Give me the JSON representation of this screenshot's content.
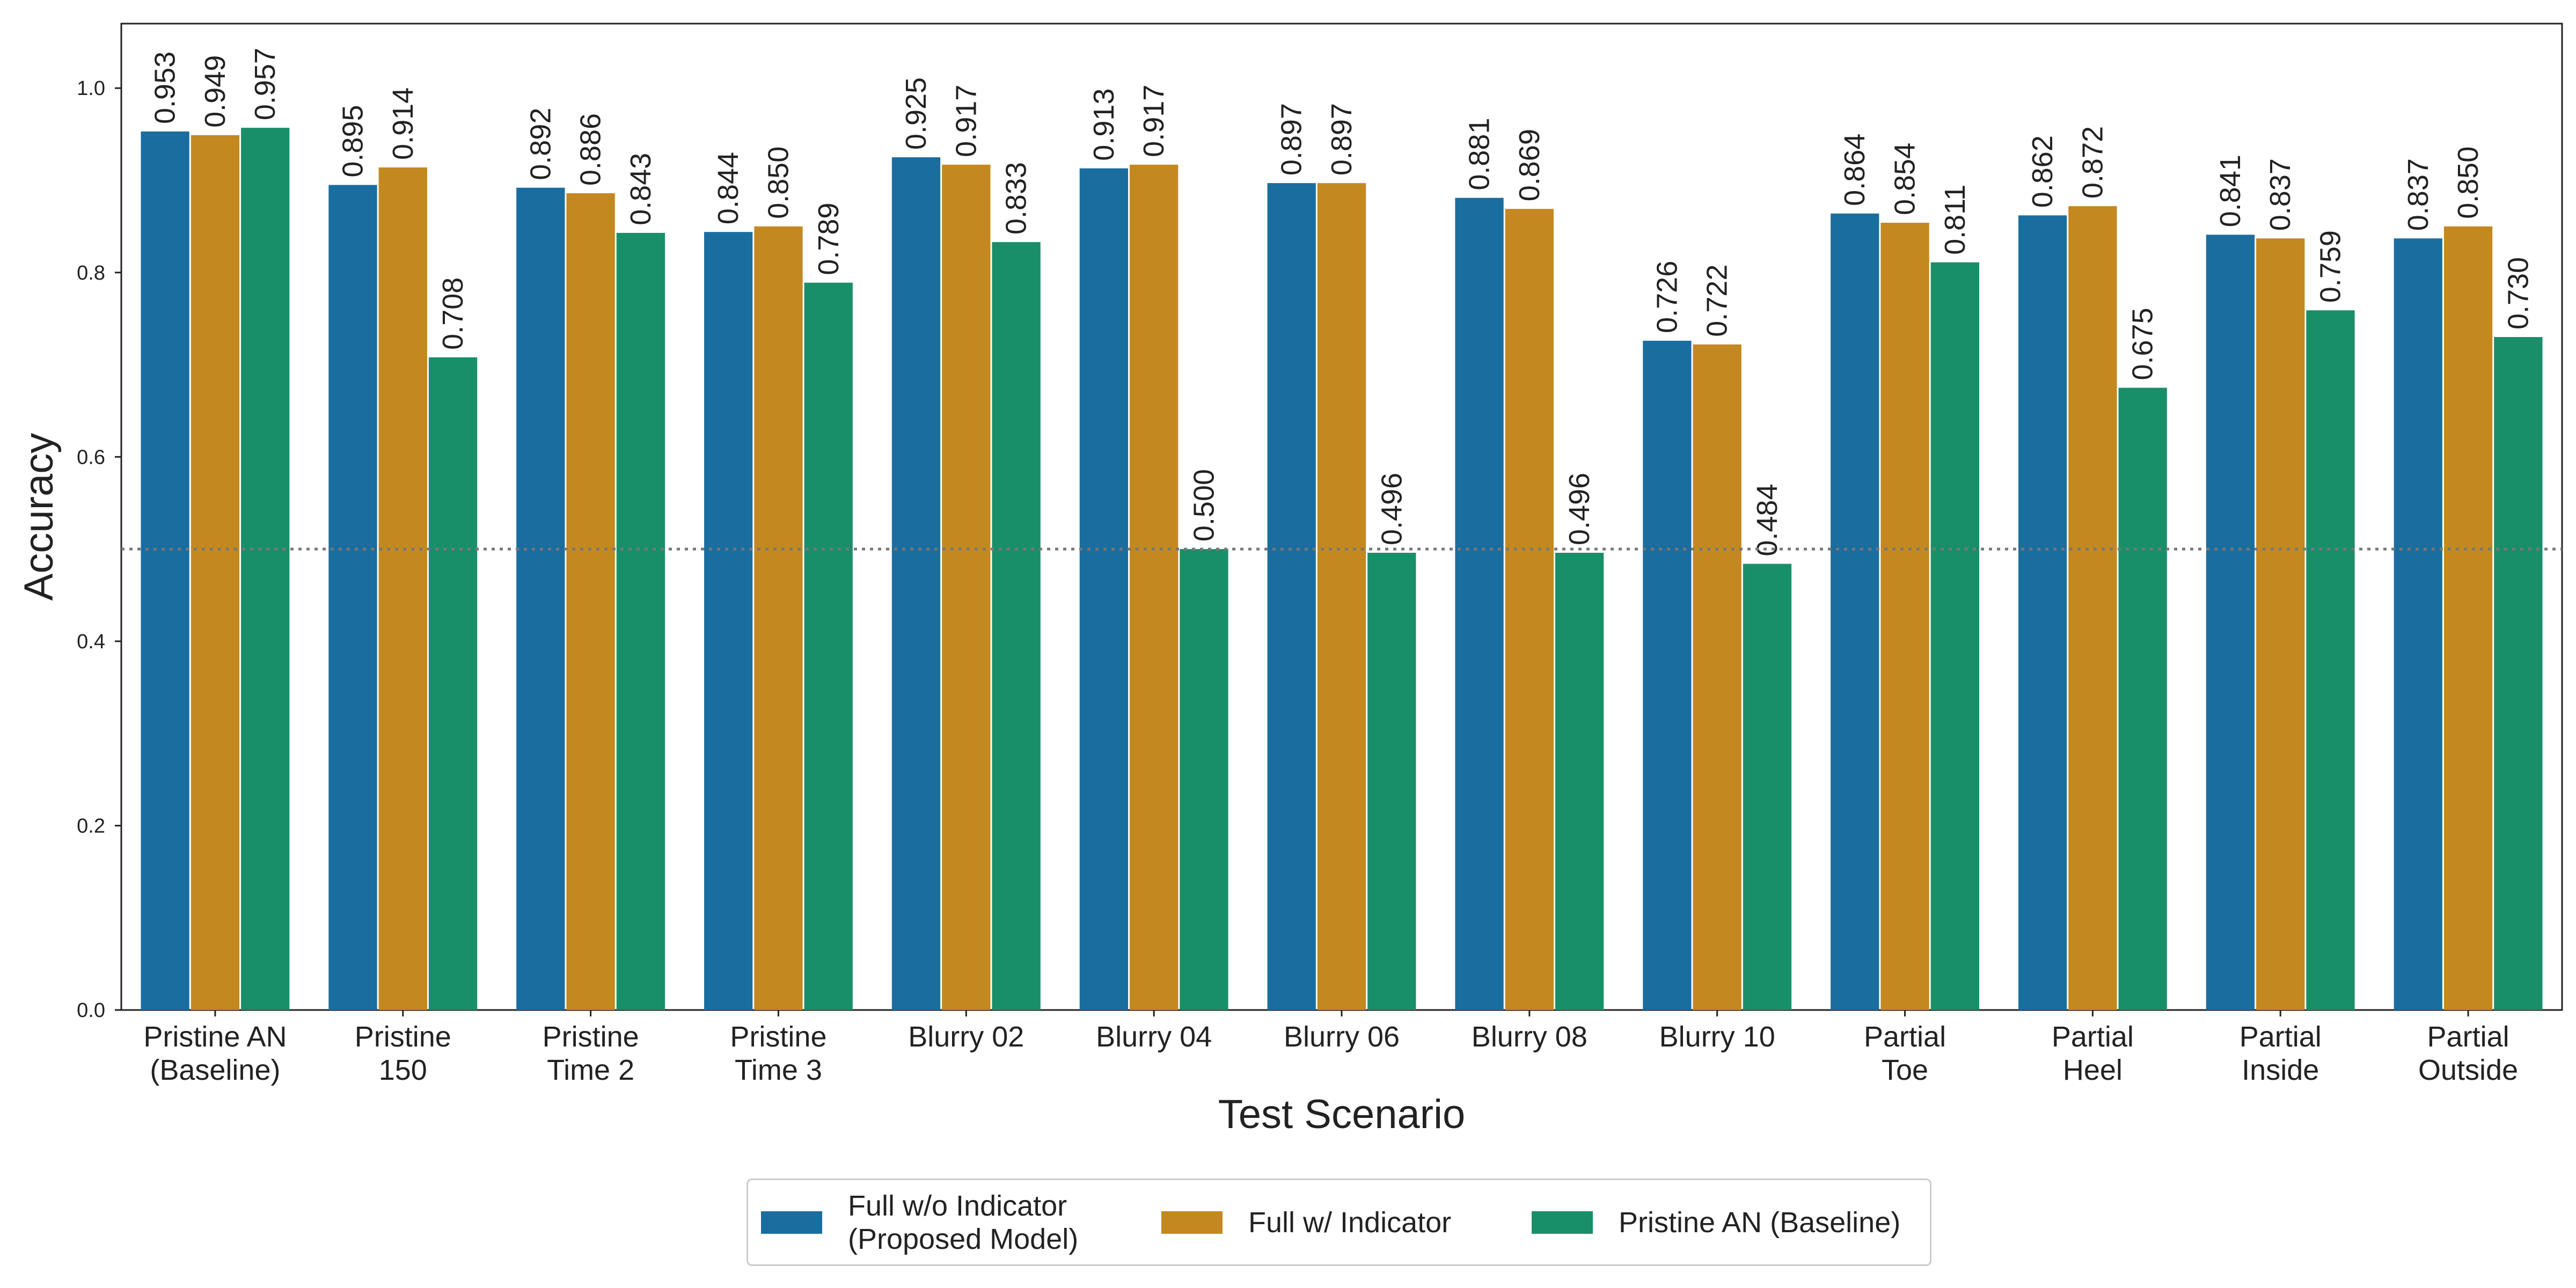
{
  "chart_data": {
    "type": "bar",
    "title": "",
    "xlabel": "Test Scenario",
    "ylabel": "Accuracy",
    "ylim": [
      0,
      1.07
    ],
    "yticks": [
      "0.0",
      "0.2",
      "0.4",
      "0.6",
      "0.8",
      "1.0"
    ],
    "ytick_values": [
      0,
      0.2,
      0.4,
      0.6,
      0.8,
      1.0
    ],
    "reference_line": 0.5,
    "grid": false,
    "legend_position": "bottom-center",
    "categories": [
      "Pristine AN\n(Baseline)",
      "Pristine\n150",
      "Pristine\nTime 2",
      "Pristine\nTime 3",
      "Blurry 02",
      "Blurry 04",
      "Blurry 06",
      "Blurry 08",
      "Blurry 10",
      "Partial\nToe",
      "Partial\nHeel",
      "Partial\nInside",
      "Partial\nOutside"
    ],
    "series": [
      {
        "name": "Full w/o Indicator\n(Proposed Model)",
        "color": "#1a6e9f",
        "values": [
          0.953,
          0.895,
          0.892,
          0.844,
          0.925,
          0.913,
          0.897,
          0.881,
          0.726,
          0.864,
          0.862,
          0.841,
          0.837
        ],
        "labels": [
          "0.953",
          "0.895",
          "0.892",
          "0.844",
          "0.925",
          "0.913",
          "0.897",
          "0.881",
          "0.726",
          "0.864",
          "0.862",
          "0.841",
          "0.837"
        ]
      },
      {
        "name": "Full w/ Indicator",
        "color": "#c48820",
        "values": [
          0.949,
          0.914,
          0.886,
          0.85,
          0.917,
          0.917,
          0.897,
          0.869,
          0.722,
          0.854,
          0.872,
          0.837,
          0.85
        ],
        "labels": [
          "0.949",
          "0.914",
          "0.886",
          "0.850",
          "0.917",
          "0.917",
          "0.897",
          "0.869",
          "0.722",
          "0.854",
          "0.872",
          "0.837",
          "0.850"
        ]
      },
      {
        "name": "Pristine AN (Baseline)",
        "color": "#198f69",
        "values": [
          0.957,
          0.708,
          0.843,
          0.789,
          0.833,
          0.5,
          0.496,
          0.496,
          0.484,
          0.811,
          0.675,
          0.759,
          0.73
        ],
        "labels": [
          "0.957",
          "0.708",
          "0.843",
          "0.789",
          "0.833",
          "0.500",
          "0.496",
          "0.496",
          "0.484",
          "0.811",
          "0.675",
          "0.759",
          "0.730"
        ]
      }
    ]
  }
}
